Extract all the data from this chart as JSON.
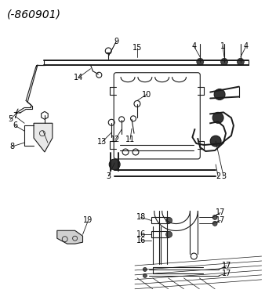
{
  "title": "(-860901)",
  "bg_color": "#ffffff",
  "line_color": "#1a1a1a",
  "title_fontsize": 10,
  "label_fontsize": 7,
  "figsize": [
    3.38,
    3.88
  ],
  "dpi": 100
}
